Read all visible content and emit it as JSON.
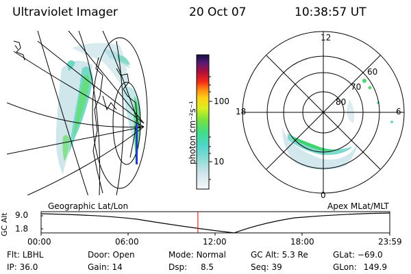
{
  "header": {
    "instrument": "Ultraviolet Imager",
    "date": "20 Oct 07",
    "time": "10:38:57 UT"
  },
  "colorbar": {
    "unit_label": "photon cm⁻²s⁻¹",
    "ticks": [
      "100",
      "10"
    ]
  },
  "left_panel": {
    "caption": "Geographic Lat/Lon"
  },
  "right_panel": {
    "caption": "Apex MLat/MLT",
    "mlt_labels": {
      "top": "12",
      "left": "18",
      "right": "6",
      "bottom": "0"
    },
    "lat_labels": [
      "60",
      "70",
      "80"
    ]
  },
  "altitude_plot": {
    "axis_label": "GC Alt",
    "y_ticks": [
      "9.0",
      "1.8"
    ],
    "x_ticks": [
      "00:00",
      "06:00",
      "12:00",
      "18:00",
      "23:59"
    ],
    "current_time_frac": 0.4497
  },
  "info": {
    "flt_label": "Flt:",
    "flt_value": "LBHL",
    "ip_label": "IP:",
    "ip_value": "36.0",
    "door_label": "Door:",
    "door_value": "Open",
    "gain_label": "Gain:",
    "gain_value": "14",
    "mode_label": "Mode:",
    "mode_value": "Normal",
    "dsp_label": "Dsp:",
    "dsp_value": "8.5",
    "gcalt_label": "GC Alt:",
    "gcalt_value": "5.3 Re",
    "seq_label": "Seq:",
    "seq_value": "39",
    "glat_label": "GLat:",
    "glat_value": "−69.0",
    "glon_label": "GLon:",
    "glon_value": "149.9"
  }
}
